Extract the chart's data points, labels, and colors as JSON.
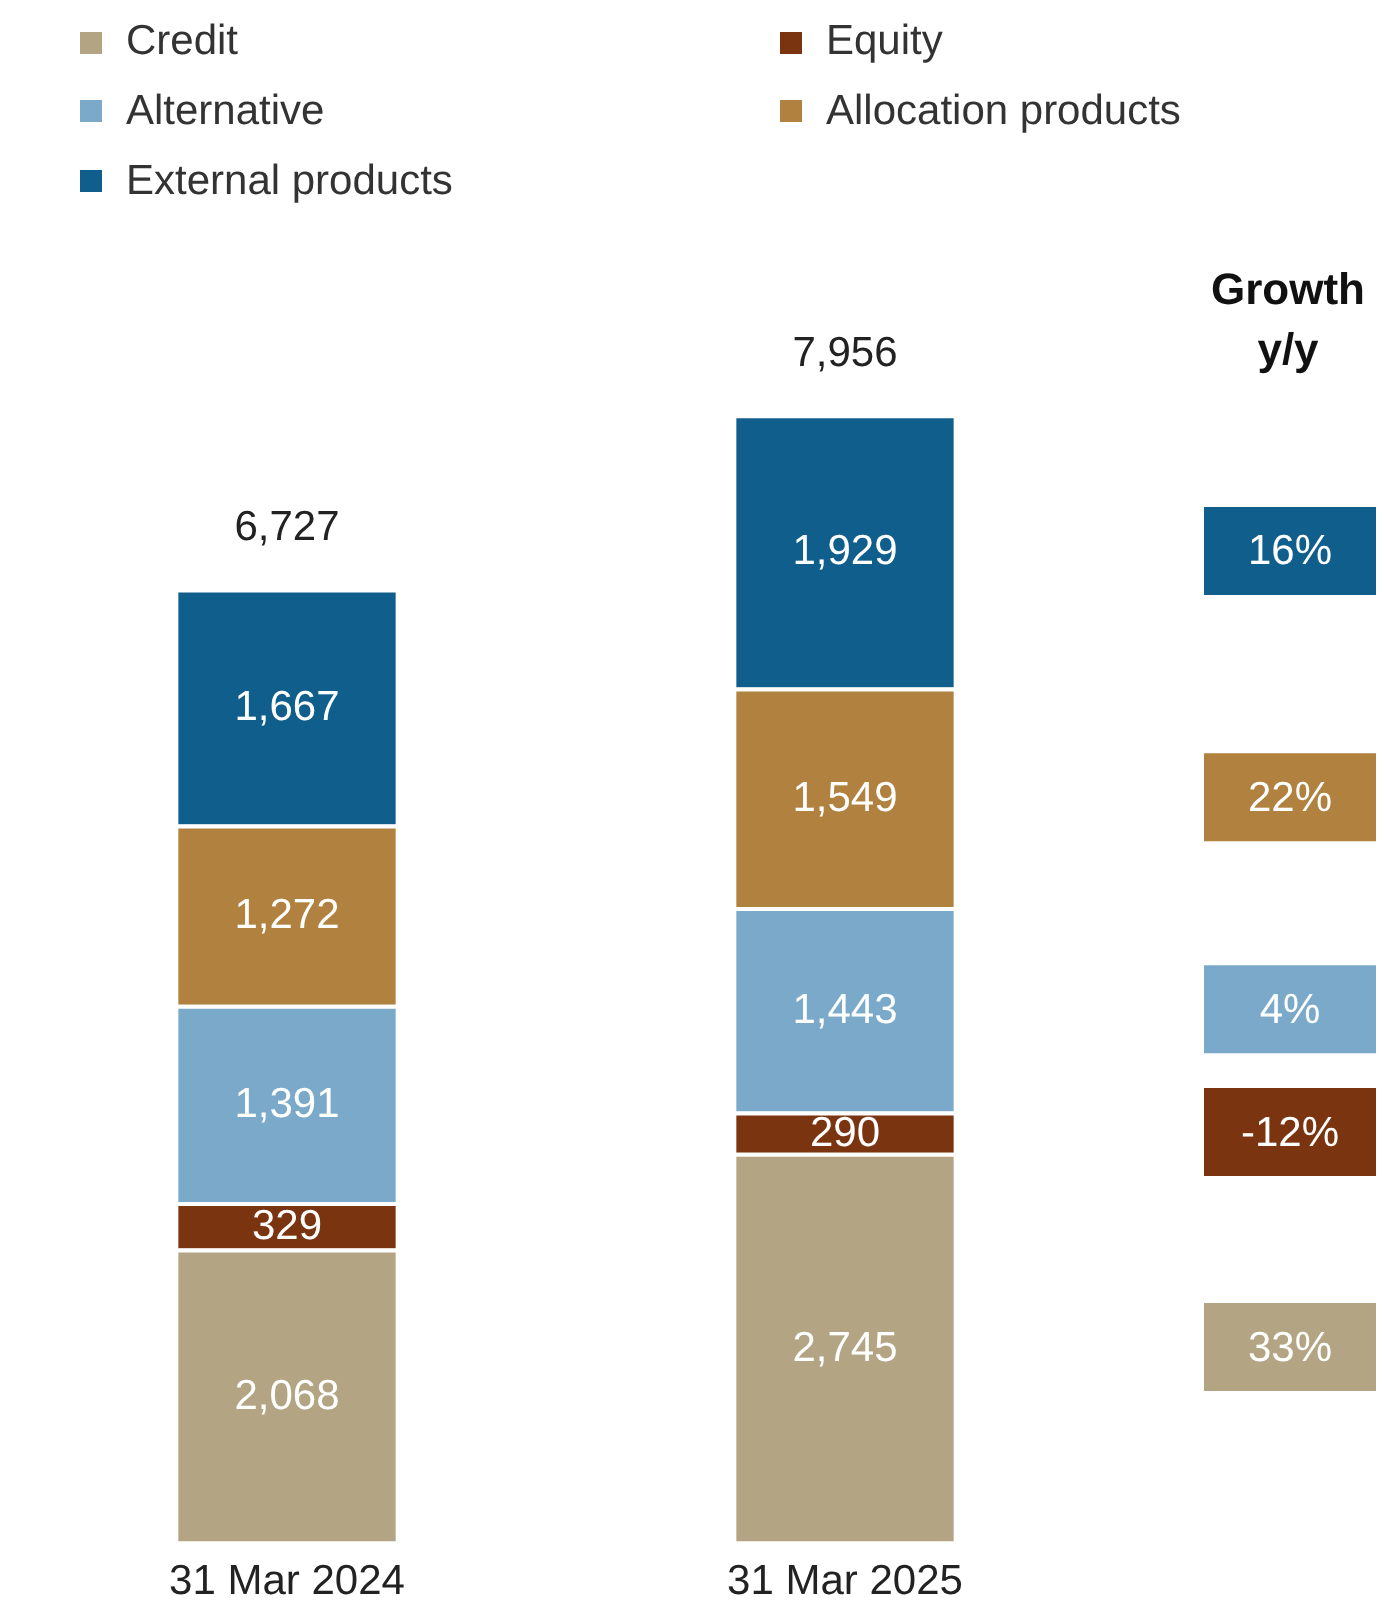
{
  "chart_data": {
    "type": "bar",
    "stacked": true,
    "categories": [
      "31 Mar 2024",
      "31 Mar 2025"
    ],
    "series": [
      {
        "name": "Credit",
        "color": "#b3a584",
        "values": [
          2068,
          2745
        ],
        "value_labels": [
          "2,068",
          "2,745"
        ]
      },
      {
        "name": "Equity",
        "color": "#7a3510",
        "values": [
          329,
          290
        ],
        "value_labels": [
          "329",
          "290"
        ]
      },
      {
        "name": "Alternative",
        "color": "#7aa9c9",
        "values": [
          1391,
          1443
        ],
        "value_labels": [
          "1,391",
          "1,443"
        ]
      },
      {
        "name": "Allocation products",
        "color": "#b0813f",
        "values": [
          1272,
          1549
        ],
        "value_labels": [
          "1,272",
          "1,549"
        ]
      },
      {
        "name": "External products",
        "color": "#0f5e8c",
        "values": [
          1667,
          1929
        ],
        "value_labels": [
          "1,667",
          "1,929"
        ]
      }
    ],
    "totals": [
      "6,727",
      "7,956"
    ],
    "annotations": [
      "Growth y/y",
      "33%",
      "-12%",
      "4%",
      "22%",
      "16%"
    ],
    "legend": "top",
    "grid": false,
    "tick_labels": "x"
  }
}
